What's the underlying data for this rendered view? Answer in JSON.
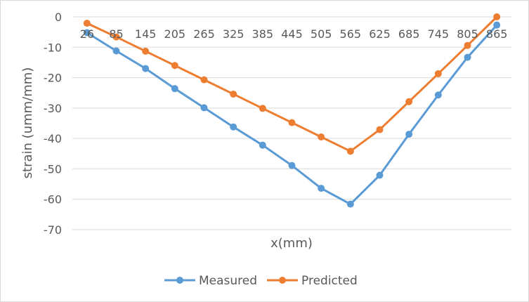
{
  "chart_data": {
    "type": "line",
    "title": "",
    "xlabel": "x(mm)",
    "ylabel": "strain (umm/mm)",
    "categories": [
      "26",
      "85",
      "145",
      "205",
      "265",
      "325",
      "385",
      "445",
      "505",
      "565",
      "625",
      "685",
      "745",
      "805",
      "865"
    ],
    "series": [
      {
        "name": "Measured",
        "color": "#5B9BD5",
        "values": [
          -5.2,
          -11.2,
          -17.0,
          -23.6,
          -29.9,
          -36.2,
          -42.2,
          -48.9,
          -56.4,
          -61.6,
          -52.1,
          -38.6,
          -25.7,
          -13.3,
          -2.7
        ]
      },
      {
        "name": "Predicted",
        "color": "#ED7D31",
        "values": [
          -2.1,
          -6.6,
          -11.3,
          -16.0,
          -20.7,
          -25.4,
          -30.1,
          -34.8,
          -39.5,
          -44.2,
          -37.1,
          -27.9,
          -18.7,
          -9.4,
          0.0
        ]
      }
    ],
    "ylim": [
      -70,
      0
    ],
    "yticks": [
      0,
      -10,
      -20,
      -30,
      -40,
      -50,
      -60,
      -70
    ],
    "grid": true,
    "legend": "bottom"
  }
}
